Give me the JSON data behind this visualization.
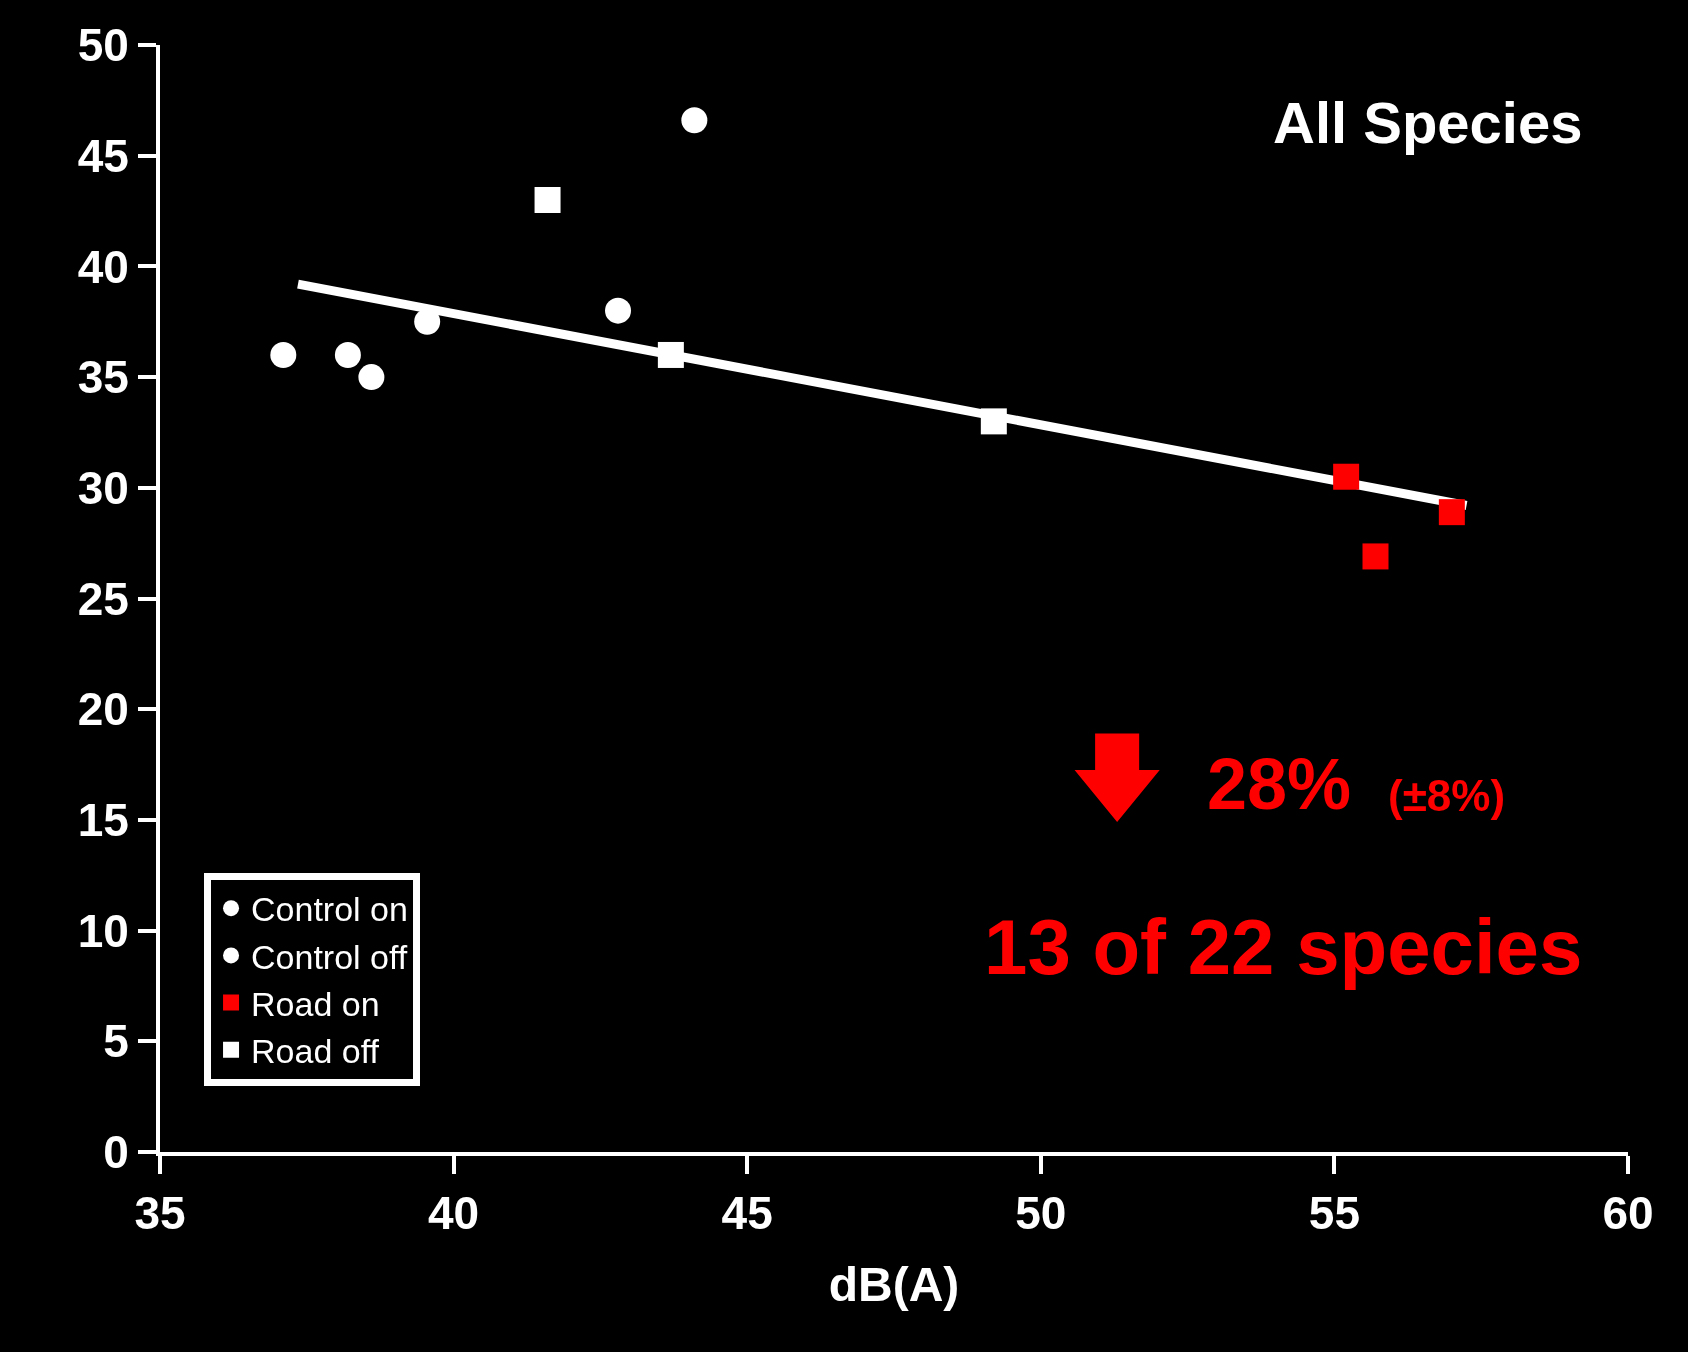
{
  "chart_data": {
    "type": "scatter",
    "xlabel": "dB(A)",
    "xlim": [
      35,
      60
    ],
    "xticks": [
      35,
      40,
      45,
      50,
      55,
      60
    ],
    "ylim": [
      0,
      50
    ],
    "yticks": [
      0,
      5,
      10,
      15,
      20,
      25,
      30,
      35,
      40,
      45,
      50
    ],
    "grid": false,
    "legend": "bottom left",
    "series": [
      {
        "name": "Control on",
        "color": "#ffffff",
        "marker": "circle",
        "x": [
          38.2,
          39.55,
          44.1
        ],
        "values": [
          36.0,
          37.5,
          46.6
        ]
      },
      {
        "name": "Control off",
        "color": "#ffffff",
        "marker": "circle",
        "x": [
          37.1,
          38.6,
          42.8
        ],
        "values": [
          36.0,
          35.0,
          38.0
        ]
      },
      {
        "name": "Road on",
        "color": "#ff0000",
        "marker": "square",
        "x": [
          55.2,
          55.7,
          57.0
        ],
        "values": [
          30.5,
          26.9,
          28.9
        ]
      },
      {
        "name": "Road off",
        "color": "#ffffff",
        "marker": "square",
        "x": [
          41.6,
          43.7,
          49.2
        ],
        "values": [
          43.0,
          36.0,
          33.0
        ]
      },
      {
        "type": "line",
        "color": "#ffffff",
        "marker": "none",
        "x": [
          37.35,
          57.25
        ],
        "values": [
          39.2,
          29.2
        ]
      }
    ],
    "annotations": [
      "All Species",
      "28%",
      "(±8%)",
      "13 of 22 species"
    ]
  }
}
